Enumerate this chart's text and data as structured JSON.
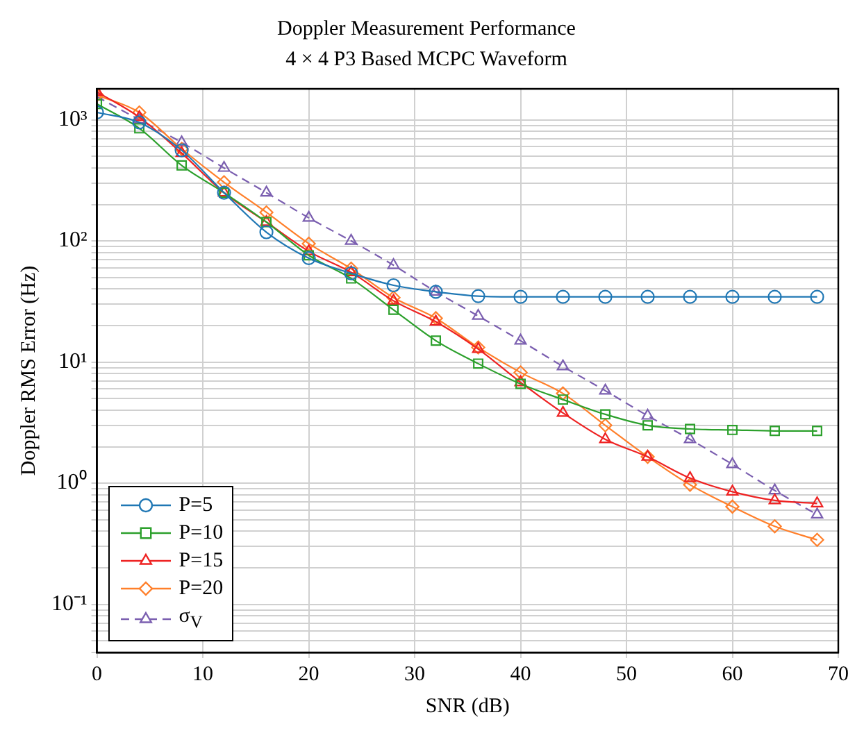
{
  "chart_data": {
    "type": "line",
    "title": "Doppler Measurement Performance",
    "subtitle": "4 × 4 P3 Based MCPC Waveform",
    "xlabel": "SNR (dB)",
    "ylabel": "Doppler RMS Error (Hz)",
    "x": [
      0,
      4,
      8,
      12,
      16,
      20,
      24,
      28,
      32,
      36,
      40,
      44,
      48,
      52,
      56,
      60,
      64,
      68
    ],
    "series": [
      {
        "name": "P=5",
        "color": "#1f77b4",
        "marker": "circle",
        "line_style": "solid",
        "values": [
          1150,
          950,
          560,
          250,
          118,
          72,
          54,
          43,
          38,
          35,
          34.5,
          34.5,
          34.5,
          34.5,
          34.5,
          34.5,
          34.5,
          34.5
        ]
      },
      {
        "name": "P=10",
        "color": "#2ca02c",
        "marker": "square",
        "line_style": "solid",
        "values": [
          1350,
          850,
          420,
          250,
          143,
          76,
          49,
          27,
          15,
          9.7,
          6.6,
          4.9,
          3.7,
          3.0,
          2.8,
          2.75,
          2.7,
          2.7
        ]
      },
      {
        "name": "P=15",
        "color": "#ee2222",
        "marker": "triangle",
        "line_style": "solid",
        "values": [
          1700,
          1050,
          530,
          250,
          143,
          82,
          55,
          32,
          21.5,
          12.8,
          6.8,
          3.8,
          2.3,
          1.65,
          1.1,
          0.85,
          0.72,
          0.68
        ]
      },
      {
        "name": "P=20",
        "color": "#ff7f2a",
        "marker": "diamond",
        "line_style": "solid",
        "values": [
          1600,
          1150,
          575,
          305,
          172,
          95,
          59,
          34,
          23,
          13.2,
          8.2,
          5.5,
          3.0,
          1.65,
          0.97,
          0.64,
          0.44,
          0.34
        ]
      },
      {
        "name": "σ$_{V}$",
        "color": "#7b5fb0",
        "marker": "triangle",
        "line_style": "dashed",
        "values": [
          1550,
          1000,
          650,
          400,
          250,
          155,
          100,
          63,
          38,
          24,
          15,
          9.2,
          5.8,
          3.6,
          2.3,
          1.43,
          0.87,
          0.55
        ]
      }
    ],
    "xlim": [
      0,
      70
    ],
    "xticks": [
      0,
      10,
      20,
      30,
      40,
      50,
      60,
      70
    ],
    "ylim": [
      0.04,
      1800
    ],
    "log": "y",
    "yticks": [
      {
        "value": 0.04,
        "label": null
      },
      {
        "value": 0.05,
        "label": null
      },
      {
        "value": 0.06,
        "label": null
      },
      {
        "value": 0.07,
        "label": null
      },
      {
        "value": 0.08,
        "label": null
      },
      {
        "value": 0.09,
        "label": null
      },
      {
        "value": 0.1,
        "label": "10⁻¹"
      },
      {
        "value": 0.2,
        "label": null
      },
      {
        "value": 0.3,
        "label": null
      },
      {
        "value": 0.4,
        "label": null
      },
      {
        "value": 0.5,
        "label": null
      },
      {
        "value": 0.6,
        "label": null
      },
      {
        "value": 0.7,
        "label": null
      },
      {
        "value": 0.8,
        "label": null
      },
      {
        "value": 0.9,
        "label": null
      },
      {
        "value": 1,
        "label": "10⁰"
      },
      {
        "value": 2,
        "label": null
      },
      {
        "value": 3,
        "label": null
      },
      {
        "value": 4,
        "label": null
      },
      {
        "value": 5,
        "label": null
      },
      {
        "value": 6,
        "label": null
      },
      {
        "value": 7,
        "label": null
      },
      {
        "value": 8,
        "label": null
      },
      {
        "value": 9,
        "label": null
      },
      {
        "value": 10,
        "label": "10¹"
      },
      {
        "value": 20,
        "label": null
      },
      {
        "value": 30,
        "label": null
      },
      {
        "value": 40,
        "label": null
      },
      {
        "value": 50,
        "label": null
      },
      {
        "value": 60,
        "label": null
      },
      {
        "value": 70,
        "label": null
      },
      {
        "value": 80,
        "label": null
      },
      {
        "value": 90,
        "label": null
      },
      {
        "value": 100,
        "label": "10²"
      },
      {
        "value": 200,
        "label": null
      },
      {
        "value": 300,
        "label": null
      },
      {
        "value": 400,
        "label": null
      },
      {
        "value": 500,
        "label": null
      },
      {
        "value": 600,
        "label": null
      },
      {
        "value": 700,
        "label": null
      },
      {
        "value": 800,
        "label": null
      },
      {
        "value": 900,
        "label": null
      },
      {
        "value": 1000,
        "label": "10³"
      }
    ],
    "grid": true,
    "legend": "bottom left"
  }
}
